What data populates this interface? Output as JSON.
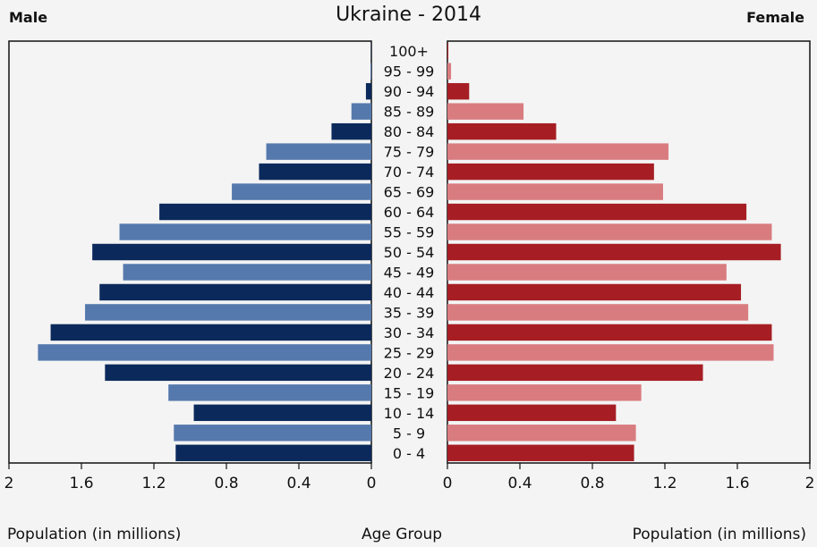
{
  "chart_data": {
    "type": "bar",
    "title": "Ukraine - 2014",
    "left_label": "Male",
    "right_label": "Female",
    "xlabel_left": "Population (in millions)",
    "xlabel_center": "Age Group",
    "xlabel_right": "Population (in millions)",
    "categories": [
      "0 - 4",
      "5 - 9",
      "10 - 14",
      "15 - 19",
      "20 - 24",
      "25 - 29",
      "30 - 34",
      "35 - 39",
      "40 - 44",
      "45 - 49",
      "50 - 54",
      "55 - 59",
      "60 - 64",
      "65 - 69",
      "70 - 74",
      "75 - 79",
      "80 - 84",
      "85 - 89",
      "90 - 94",
      "95 - 99",
      "100+"
    ],
    "series": [
      {
        "name": "Male",
        "values": [
          1.08,
          1.09,
          0.98,
          1.12,
          1.47,
          1.84,
          1.77,
          1.58,
          1.5,
          1.37,
          1.54,
          1.39,
          1.17,
          0.77,
          0.62,
          0.58,
          0.22,
          0.11,
          0.03,
          0.005,
          0.002
        ]
      },
      {
        "name": "Female",
        "values": [
          1.03,
          1.04,
          0.93,
          1.07,
          1.41,
          1.8,
          1.79,
          1.66,
          1.62,
          1.54,
          1.84,
          1.79,
          1.65,
          1.19,
          1.14,
          1.22,
          0.6,
          0.42,
          0.12,
          0.02,
          0.005
        ]
      }
    ],
    "xlim": [
      0,
      2
    ],
    "ticks": [
      "2",
      "1.6",
      "1.2",
      "0.8",
      "0.4",
      "0"
    ],
    "ticks_right": [
      "0",
      "0.4",
      "0.8",
      "1.2",
      "1.6",
      "2"
    ],
    "colors": {
      "male_dark": "#0b2a5b",
      "male_light": "#5579ad",
      "female_dark": "#a61e24",
      "female_light": "#d97c80"
    },
    "grid": false
  }
}
